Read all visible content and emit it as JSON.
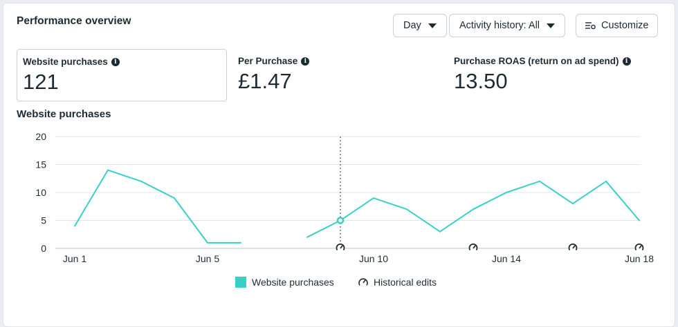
{
  "header": {
    "title": "Performance overview"
  },
  "controls": {
    "day_label": "Day",
    "activity_label": "Activity history: All",
    "customize_label": "Customize"
  },
  "metrics": [
    {
      "label": "Website purchases",
      "value": "121"
    },
    {
      "label": "Per Purchase",
      "value": "£1.47"
    },
    {
      "label": "Purchase ROAS (return on ad spend)",
      "value": "13.50"
    }
  ],
  "chart_data": {
    "type": "line",
    "title": "Website purchases",
    "x_ticks": [
      "Jun 1",
      "Jun 5",
      "Jun 10",
      "Jun 14",
      "Jun 18"
    ],
    "y_ticks": [
      0,
      5,
      10,
      15,
      20
    ],
    "ylim": [
      0,
      20
    ],
    "xlim": [
      1,
      18.3
    ],
    "grid": true,
    "legend_position": "bottom",
    "series": [
      {
        "name": "Website purchases",
        "color": "#39cfc9",
        "segments": [
          [
            [
              1,
              4
            ],
            [
              2,
              14
            ],
            [
              3,
              12
            ],
            [
              4,
              9
            ],
            [
              5,
              1
            ],
            [
              6,
              1
            ]
          ],
          [
            [
              8,
              2
            ],
            [
              9,
              5
            ],
            [
              10,
              9
            ],
            [
              11,
              7
            ],
            [
              12,
              3
            ],
            [
              13,
              7
            ],
            [
              14,
              10
            ],
            [
              15,
              12
            ],
            [
              16,
              8
            ],
            [
              17,
              12
            ],
            [
              18,
              5
            ]
          ]
        ]
      }
    ],
    "highlight_x": 9,
    "historical_edits_x": [
      9,
      13,
      16,
      18
    ],
    "legend": {
      "series_label": "Website purchases",
      "edits_label": "Historical edits"
    }
  }
}
